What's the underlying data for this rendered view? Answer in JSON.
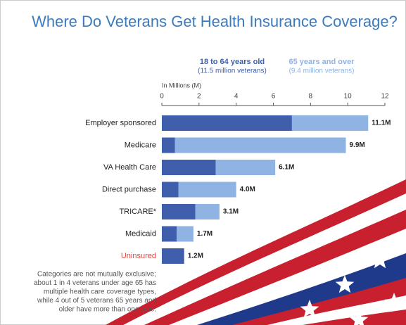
{
  "chart_data": {
    "type": "bar",
    "orientation": "horizontal",
    "stacked": true,
    "title": "Where Do Veterans Get Health Insurance Coverage?",
    "x_label": "In Millions (M)",
    "categories": [
      "Employer sponsored",
      "Medicare",
      "VA Health Care",
      "Direct purchase",
      "TRICARE*",
      "Medicaid",
      "Uninsured"
    ],
    "highlight": {
      "category": 6,
      "color": "#e8403a"
    },
    "series": [
      {
        "name": "18 to 64 years old",
        "note": "(11.5 million veterans)",
        "color": "#3f5fad",
        "values": [
          7.0,
          0.7,
          2.9,
          0.9,
          1.8,
          0.8,
          1.2
        ]
      },
      {
        "name": "65 years and over",
        "note": "(9.4 million veterans)",
        "color": "#8fb3e3",
        "values": [
          4.1,
          9.2,
          3.2,
          3.1,
          1.3,
          0.9,
          0
        ]
      }
    ],
    "totals": {
      "values": [
        11.1,
        9.9,
        6.1,
        4.0,
        3.1,
        1.7,
        1.2
      ],
      "value_labels": [
        "11.1M",
        "9.9M",
        "6.1M",
        "4.0M",
        "3.1M",
        "1.7M",
        "1.2M"
      ]
    },
    "xlim": [
      0,
      12
    ],
    "xticks": [
      0,
      2,
      4,
      6,
      8,
      10,
      12
    ],
    "footnote": [
      "Categories are not mutually exclusive;",
      "about 1 in 4 veterans under age 65 has",
      "multiple health care coverage types,",
      "while 4 out of 5 veterans 65 years and",
      "older have more than one type."
    ]
  }
}
